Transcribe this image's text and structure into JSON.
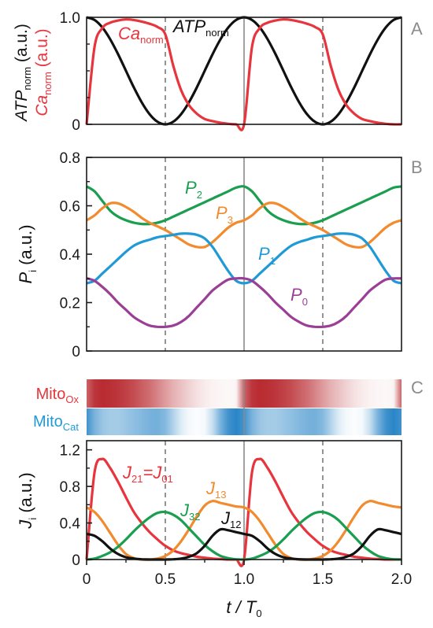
{
  "colors": {
    "black": "#111111",
    "red": "#e8343c",
    "orange": "#f28a2e",
    "green": "#1a9e4f",
    "blue": "#1f9ad6",
    "purple": "#9b3f96",
    "grey_line": "#8a8a8a",
    "dash": "#666666",
    "ox_dark": "#b52026",
    "cat_dark": "#1f7fc4"
  },
  "panels": {
    "A": {
      "label": "A",
      "ylabel_top": "ATP",
      "ylabel_top_sub": "norm",
      "ylabel_top_tail": " (a.u.)",
      "ylabel_bot": "Ca",
      "ylabel_bot_sub": "norm",
      "ylabel_bot_tail": " (a.u.)",
      "yticks": [
        "0",
        "1.0"
      ],
      "ca_label": "Ca",
      "ca_sub": "norm",
      "atp_label": "ATP",
      "atp_sub": "norm"
    },
    "B": {
      "label": "B",
      "ylabel": "P",
      "ylabel_sub": "i",
      "ylabel_tail": " (a.u.)",
      "yticks": [
        "0",
        "0.2",
        "0.4",
        "0.6",
        "0.8"
      ],
      "p2": "P",
      "p2_sub": "2",
      "p3": "P",
      "p3_sub": "3",
      "p1": "P",
      "p1_sub": "1",
      "p0": "P",
      "p0_sub": "0"
    },
    "C": {
      "label": "C",
      "ox_label": "Mito",
      "ox_sub": "Ox",
      "cat_label": "Mito",
      "cat_sub": "Cat",
      "ylabel": "J",
      "ylabel_sub": "i",
      "ylabel_tail": " (a.u.)",
      "yticks": [
        "0",
        "0.4",
        "0.8",
        "1.2"
      ],
      "j21": "J",
      "j21_sub": "21",
      "j21_eq": "=J",
      "j21_sub2": "01",
      "j13": "J",
      "j13_sub": "13",
      "j32": "J",
      "j32_sub": "32",
      "j12": "J",
      "j12_sub": "12"
    }
  },
  "xaxis": {
    "ticks": [
      "0",
      "0.5",
      "1.0",
      "1.5",
      "2.0"
    ],
    "label_t": "t",
    "label_slash": " / T",
    "label_sub": "0"
  },
  "chart_data": [
    {
      "type": "line",
      "panel": "A",
      "xlabel": "t / T0",
      "ylabel": "ATPnorm (a.u.) / Canorm (a.u.)",
      "xlim": [
        0,
        2
      ],
      "ylim": [
        0,
        1
      ],
      "x": [
        0,
        0.05,
        0.1,
        0.15,
        0.2,
        0.25,
        0.3,
        0.35,
        0.4,
        0.45,
        0.5,
        0.55,
        0.6,
        0.65,
        0.7,
        0.75,
        0.8,
        0.85,
        0.9,
        0.95,
        1.0
      ],
      "series": [
        {
          "name": "ATPnorm",
          "values": [
            1,
            0.976,
            0.905,
            0.794,
            0.655,
            0.5,
            0.345,
            0.206,
            0.095,
            0.024,
            0,
            0.024,
            0.095,
            0.206,
            0.345,
            0.5,
            0.655,
            0.794,
            0.905,
            0.976,
            1
          ],
          "periodic": true
        },
        {
          "name": "Canorm",
          "values": [
            0.0,
            0.72,
            0.9,
            0.95,
            0.97,
            0.98,
            0.975,
            0.96,
            0.94,
            0.91,
            0.84,
            0.55,
            0.32,
            0.18,
            0.1,
            0.05,
            0.03,
            0.015,
            0.005,
            0.0,
            0.0
          ],
          "periodic": true
        }
      ],
      "vlines_dashed": [
        0.5,
        1.5
      ],
      "vlines_solid": [
        1.0
      ]
    },
    {
      "type": "line",
      "panel": "B",
      "xlabel": "t / T0",
      "ylabel": "Pi (a.u.)",
      "xlim": [
        0,
        2
      ],
      "ylim": [
        0,
        0.8
      ],
      "x": [
        0,
        0.05,
        0.1,
        0.15,
        0.2,
        0.25,
        0.3,
        0.35,
        0.4,
        0.45,
        0.5,
        0.55,
        0.6,
        0.65,
        0.7,
        0.75,
        0.8,
        0.85,
        0.9,
        0.95,
        1.0
      ],
      "series": [
        {
          "name": "P2",
          "values": [
            0.68,
            0.66,
            0.62,
            0.58,
            0.555,
            0.54,
            0.53,
            0.525,
            0.525,
            0.53,
            0.54,
            0.555,
            0.57,
            0.585,
            0.6,
            0.615,
            0.63,
            0.645,
            0.66,
            0.675,
            0.68
          ],
          "periodic": true
        },
        {
          "name": "P3",
          "values": [
            0.54,
            0.56,
            0.59,
            0.61,
            0.61,
            0.595,
            0.575,
            0.55,
            0.53,
            0.515,
            0.5,
            0.48,
            0.46,
            0.44,
            0.43,
            0.43,
            0.45,
            0.48,
            0.51,
            0.53,
            0.54
          ],
          "periodic": true
        },
        {
          "name": "P1",
          "values": [
            0.28,
            0.29,
            0.32,
            0.35,
            0.38,
            0.41,
            0.435,
            0.45,
            0.46,
            0.47,
            0.475,
            0.48,
            0.485,
            0.485,
            0.48,
            0.465,
            0.43,
            0.38,
            0.33,
            0.29,
            0.28
          ],
          "periodic": true
        },
        {
          "name": "P0",
          "values": [
            0.3,
            0.29,
            0.265,
            0.235,
            0.2,
            0.17,
            0.14,
            0.12,
            0.105,
            0.1,
            0.1,
            0.105,
            0.12,
            0.145,
            0.18,
            0.215,
            0.25,
            0.275,
            0.295,
            0.3,
            0.3
          ],
          "periodic": true
        }
      ],
      "vlines_dashed": [
        0.5,
        1.5
      ],
      "vlines_solid": [
        1.0
      ]
    },
    {
      "type": "heatmap",
      "panel": "C-top",
      "rows": [
        "MitoOx",
        "MitoCat"
      ],
      "x": [
        0,
        0.05,
        0.1,
        0.15,
        0.2,
        0.25,
        0.3,
        0.35,
        0.4,
        0.45,
        0.5,
        0.55,
        0.6,
        0.65,
        0.7,
        0.75,
        0.8,
        0.85,
        0.9,
        0.95,
        1.0
      ],
      "intensity_ox": [
        0.7,
        0.9,
        0.95,
        0.93,
        0.9,
        0.85,
        0.8,
        0.72,
        0.65,
        0.55,
        0.45,
        0.35,
        0.28,
        0.2,
        0.14,
        0.09,
        0.06,
        0.04,
        0.03,
        0.05,
        0.7
      ],
      "intensity_cat": [
        0.85,
        0.6,
        0.45,
        0.4,
        0.4,
        0.45,
        0.5,
        0.55,
        0.6,
        0.62,
        0.55,
        0.35,
        0.15,
        0.05,
        0.02,
        0.05,
        0.25,
        0.6,
        0.85,
        0.95,
        0.85
      ],
      "periodic": true
    },
    {
      "type": "line",
      "panel": "C",
      "xlabel": "t / T0",
      "ylabel": "Ji (a.u.)",
      "xlim": [
        0,
        2
      ],
      "ylim": [
        0,
        1.3
      ],
      "x": [
        0,
        0.05,
        0.1,
        0.15,
        0.2,
        0.25,
        0.3,
        0.35,
        0.4,
        0.45,
        0.5,
        0.55,
        0.6,
        0.65,
        0.7,
        0.75,
        0.8,
        0.85,
        0.9,
        0.95,
        1.0
      ],
      "series": [
        {
          "name": "J21=J01",
          "values": [
            0.0,
            0.95,
            1.1,
            1.0,
            0.85,
            0.68,
            0.52,
            0.4,
            0.3,
            0.22,
            0.15,
            0.1,
            0.07,
            0.05,
            0.03,
            0.02,
            0.01,
            0.005,
            0.0,
            0.0,
            0.0
          ],
          "periodic": true
        },
        {
          "name": "J13",
          "values": [
            0.57,
            0.52,
            0.42,
            0.29,
            0.16,
            0.06,
            0.015,
            0.0,
            0.0,
            0.01,
            0.04,
            0.1,
            0.2,
            0.33,
            0.47,
            0.59,
            0.64,
            0.62,
            0.6,
            0.58,
            0.57
          ],
          "periodic": true
        },
        {
          "name": "J32",
          "values": [
            0.0,
            0.01,
            0.04,
            0.08,
            0.14,
            0.22,
            0.31,
            0.39,
            0.46,
            0.51,
            0.52,
            0.49,
            0.43,
            0.34,
            0.25,
            0.16,
            0.09,
            0.04,
            0.015,
            0.003,
            0.0
          ],
          "periodic": true
        },
        {
          "name": "J12",
          "values": [
            0.28,
            0.26,
            0.2,
            0.12,
            0.06,
            0.025,
            0.01,
            0.003,
            0.0,
            0.0,
            0.0,
            0.003,
            0.01,
            0.03,
            0.07,
            0.15,
            0.26,
            0.33,
            0.32,
            0.3,
            0.28
          ],
          "periodic": true
        }
      ],
      "vlines_dashed": [
        0.5,
        1.5
      ],
      "vlines_solid": [
        1.0
      ]
    }
  ]
}
